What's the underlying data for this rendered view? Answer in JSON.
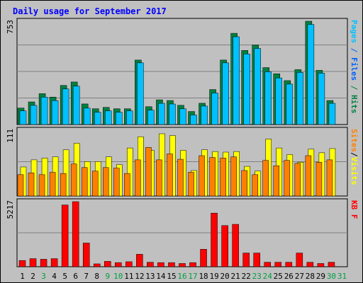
{
  "colors": {
    "hits": "#00c0ff",
    "hits_shadow": "#008040",
    "files": "#00b8ff",
    "files_shadow": "#003050",
    "visits": "#ffff00",
    "sites": "#ff8000",
    "kbytes": "#ff0000",
    "weekend_label": "#00a040",
    "weekday_label": "#000000",
    "title": "#0000ff",
    "background": "#c0c0c0",
    "panel": "#c0c0c0",
    "grid": "#808080"
  },
  "chart_data": {
    "type": "bar",
    "title": "Daily usage for September 2017",
    "categories": [
      "1",
      "2",
      "3",
      "4",
      "5",
      "6",
      "7",
      "8",
      "9",
      "10",
      "11",
      "12",
      "13",
      "14",
      "15",
      "16",
      "17",
      "18",
      "19",
      "20",
      "21",
      "22",
      "23",
      "24",
      "25",
      "26",
      "27",
      "28",
      "29",
      "30",
      "31"
    ],
    "weekend_days": [
      "3",
      "9",
      "10",
      "16",
      "17",
      "23",
      "24",
      "30",
      "31"
    ],
    "panels": [
      {
        "name": "top",
        "ymax": 753,
        "ymax_label": "753",
        "side_labels": [
          {
            "text": "Pages",
            "color": "#00c0ff"
          },
          {
            "text": "Files",
            "color": "#0060ff"
          },
          {
            "text": "Hits",
            "color": "#008040"
          }
        ],
        "series": [
          {
            "name": "Hits",
            "values": [
              120,
              165,
              225,
              200,
              285,
              310,
              150,
              115,
              125,
              115,
              115,
              470,
              130,
              180,
              175,
              140,
              95,
              155,
              255,
              470,
              665,
              540,
              580,
              415,
              370,
              320,
              400,
              760,
              395,
              175,
              0
            ]
          },
          {
            "name": "Files",
            "values": [
              115,
              155,
              215,
              190,
              275,
              295,
              135,
              105,
              115,
              105,
              115,
              465,
              120,
              170,
              165,
              130,
              85,
              150,
              245,
              465,
              655,
              530,
              570,
              400,
              355,
              310,
              395,
              745,
              390,
              170,
              0
            ]
          }
        ]
      },
      {
        "name": "middle",
        "ymax": 111,
        "ymax_label": "111",
        "side_labels": [
          {
            "text": "Sites",
            "color": "#ff8000"
          },
          {
            "text": "/",
            "color": "#000000"
          },
          {
            "text": "Visits",
            "color": "#ffff00"
          }
        ],
        "series": [
          {
            "name": "Visits",
            "values": [
              49,
              61,
              64,
              66,
              78,
              89,
              58,
              58,
              66,
              53,
              81,
              100,
              77,
              105,
              102,
              77,
              43,
              78,
              75,
              74,
              75,
              50,
              42,
              96,
              81,
              70,
              57,
              79,
              73,
              80,
              0
            ]
          },
          {
            "name": "Sites",
            "values": [
              36,
              39,
              36,
              40,
              38,
              54,
              48,
              42,
              48,
              47,
              38,
              61,
              82,
              61,
              71,
              62,
              40,
              68,
              65,
              64,
              66,
              43,
              36,
              60,
              51,
              60,
              55,
              68,
              57,
              61,
              0
            ]
          }
        ]
      },
      {
        "name": "bottom",
        "ymax": 5217,
        "ymax_label": "5217",
        "side_labels": [
          {
            "text": "KB F",
            "color": "#ff0000"
          }
        ],
        "series": [
          {
            "name": "KB F",
            "values": [
              500,
              650,
              600,
              650,
              4950,
              5217,
              1900,
              230,
              430,
              330,
              400,
              1000,
              360,
              330,
              330,
              260,
              330,
              1400,
              4300,
              3300,
              3400,
              1100,
              1100,
              360,
              360,
              360,
              1100,
              360,
              260,
              360,
              0
            ]
          }
        ]
      }
    ]
  }
}
